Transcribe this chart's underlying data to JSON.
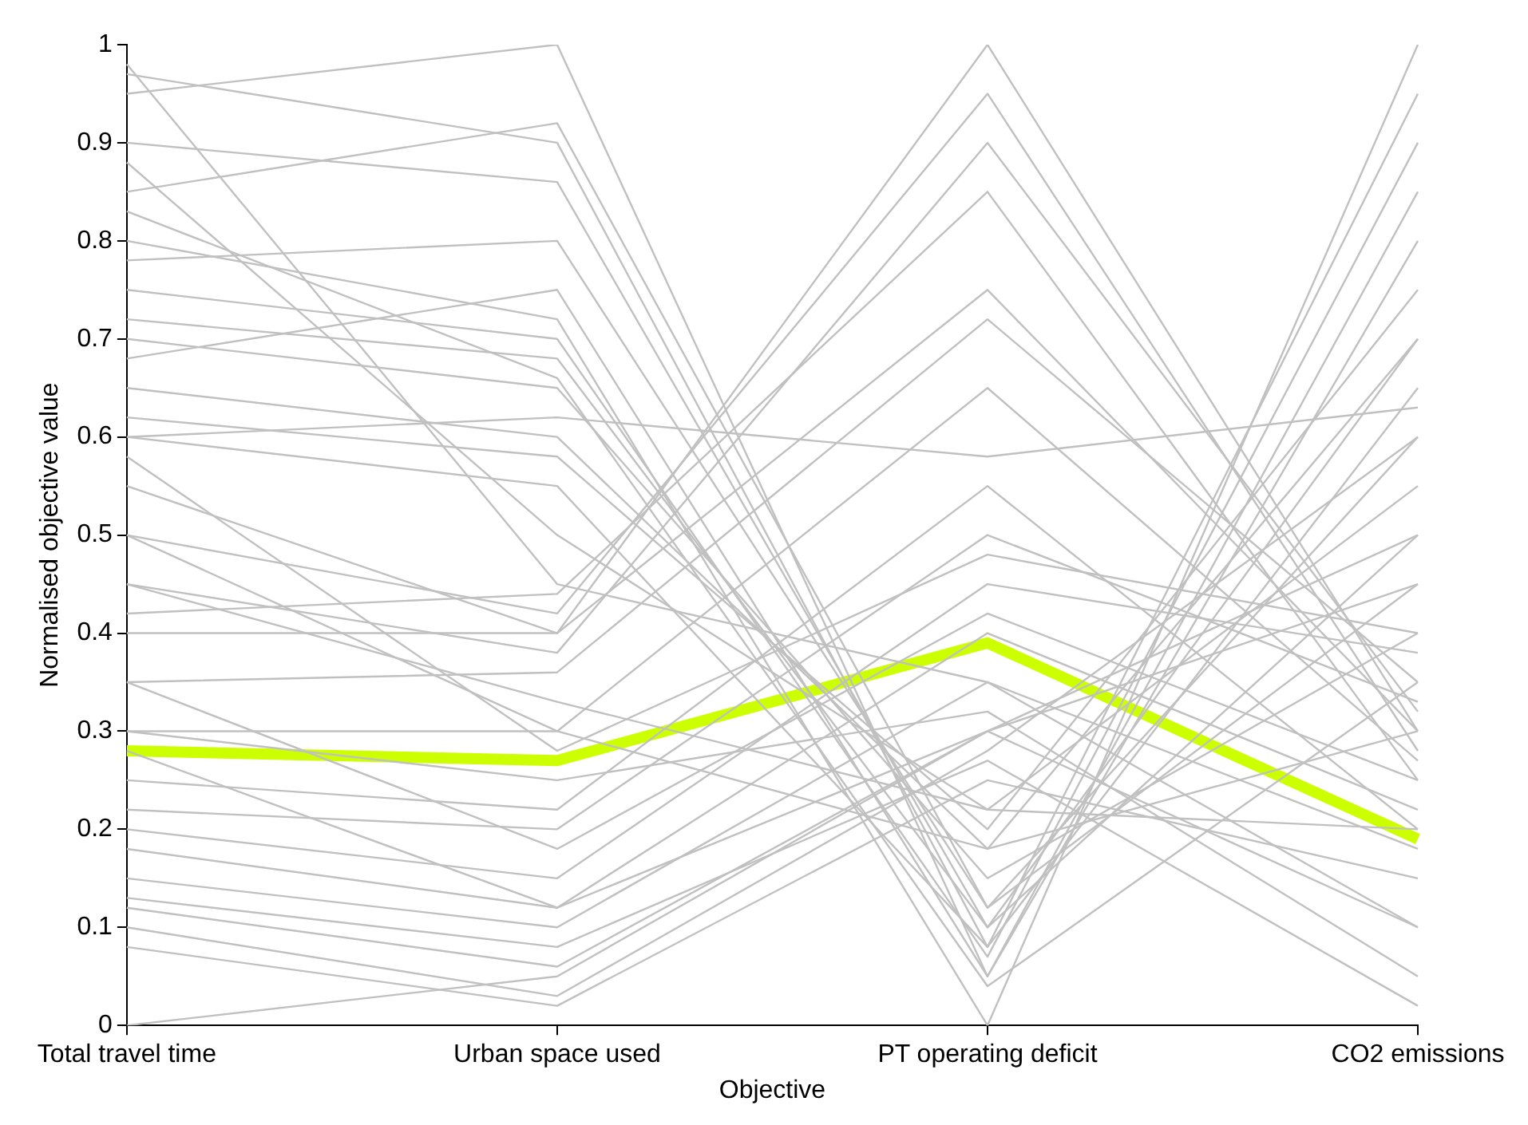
{
  "chart_data": {
    "type": "line",
    "xlabel": "Objective",
    "ylabel": "Normalised objective value",
    "categories": [
      "Total travel time",
      "Urban space used",
      "PT operating deficit",
      "CO2 emissions"
    ],
    "ylim": [
      0,
      1
    ],
    "yticks": [
      0,
      0.1,
      0.2,
      0.3,
      0.4,
      0.5,
      0.6,
      0.7,
      0.8,
      0.9,
      1
    ],
    "grid": false,
    "legend": false,
    "marker": "none",
    "line_style": "solid",
    "series": [
      {
        "color": "#c0c0c0",
        "values": [
          0.97,
          0.9,
          0.08,
          0.95
        ]
      },
      {
        "color": "#c0c0c0",
        "values": [
          0.95,
          1.0,
          0.05,
          0.85
        ]
      },
      {
        "color": "#c0c0c0",
        "values": [
          0.9,
          0.86,
          0.1,
          0.7
        ]
      },
      {
        "color": "#c0c0c0",
        "values": [
          0.85,
          0.92,
          0.12,
          0.6
        ]
      },
      {
        "color": "#c0c0c0",
        "values": [
          0.8,
          0.72,
          0.0,
          1.0
        ]
      },
      {
        "color": "#c0c0c0",
        "values": [
          0.75,
          0.7,
          0.07,
          0.9
        ]
      },
      {
        "color": "#c0c0c0",
        "values": [
          0.72,
          0.68,
          0.1,
          0.5
        ]
      },
      {
        "color": "#c0c0c0",
        "values": [
          0.7,
          0.65,
          0.15,
          0.4
        ]
      },
      {
        "color": "#c0c0c0",
        "values": [
          0.68,
          0.75,
          0.05,
          0.8
        ]
      },
      {
        "color": "#c0c0c0",
        "values": [
          0.65,
          0.6,
          0.18,
          0.3
        ]
      },
      {
        "color": "#c0c0c0",
        "values": [
          0.62,
          0.58,
          0.2,
          0.75
        ]
      },
      {
        "color": "#c0c0c0",
        "values": [
          0.6,
          0.55,
          0.08,
          0.65
        ]
      },
      {
        "color": "#c0c0c0",
        "values": [
          0.88,
          0.5,
          0.22,
          0.2
        ]
      },
      {
        "color": "#c0c0c0",
        "values": [
          0.98,
          0.45,
          0.35,
          0.1
        ]
      },
      {
        "color": "#c0c0c0",
        "values": [
          0.55,
          0.4,
          1.0,
          0.3
        ]
      },
      {
        "color": "#c0c0c0",
        "values": [
          0.5,
          0.42,
          0.95,
          0.28
        ]
      },
      {
        "color": "#c0c0c0",
        "values": [
          0.45,
          0.38,
          0.9,
          0.32
        ]
      },
      {
        "color": "#c0c0c0",
        "values": [
          0.42,
          0.44,
          0.85,
          0.25
        ]
      },
      {
        "color": "#c0c0c0",
        "values": [
          0.4,
          0.4,
          0.75,
          0.3
        ]
      },
      {
        "color": "#c0c0c0",
        "values": [
          0.35,
          0.36,
          0.72,
          0.35
        ]
      },
      {
        "color": "#c0c0c0",
        "values": [
          0.3,
          0.3,
          0.65,
          0.27
        ]
      },
      {
        "color": "#c0c0c0",
        "values": [
          0.25,
          0.22,
          0.55,
          0.2
        ]
      },
      {
        "color": "#c0c0c0",
        "values": [
          0.22,
          0.2,
          0.5,
          0.33
        ]
      },
      {
        "color": "#c0c0c0",
        "values": [
          0.2,
          0.15,
          0.45,
          0.38
        ]
      },
      {
        "color": "#c0c0c0",
        "values": [
          0.18,
          0.12,
          0.4,
          0.22
        ]
      },
      {
        "color": "#c0c0c0",
        "values": [
          0.15,
          0.1,
          0.35,
          0.18
        ]
      },
      {
        "color": "#c0c0c0",
        "values": [
          0.12,
          0.06,
          0.3,
          0.45
        ]
      },
      {
        "color": "#c0c0c0",
        "values": [
          0.1,
          0.03,
          0.28,
          0.6
        ]
      },
      {
        "color": "#c0c0c0",
        "values": [
          0.08,
          0.02,
          0.25,
          0.15
        ]
      },
      {
        "color": "#c0c0c0",
        "values": [
          0.0,
          0.05,
          0.3,
          0.1
        ]
      },
      {
        "color": "#c0c0c0",
        "values": [
          0.13,
          0.08,
          0.27,
          0.02
        ]
      },
      {
        "color": "#c0c0c0",
        "values": [
          0.3,
          0.25,
          0.32,
          0.05
        ]
      },
      {
        "color": "#c0c0c0",
        "values": [
          0.45,
          0.33,
          0.22,
          0.55
        ]
      },
      {
        "color": "#c0c0c0",
        "values": [
          0.5,
          0.3,
          0.18,
          0.7
        ]
      },
      {
        "color": "#c0c0c0",
        "values": [
          0.6,
          0.62,
          0.58,
          0.63
        ]
      },
      {
        "color": "#c0c0c0",
        "values": [
          0.78,
          0.8,
          0.12,
          0.45
        ]
      },
      {
        "color": "#c0c0c0",
        "values": [
          0.83,
          0.66,
          0.04,
          0.35
        ]
      },
      {
        "color": "#c0c0c0",
        "values": [
          0.58,
          0.28,
          0.48,
          0.4
        ]
      },
      {
        "color": "#c0c0c0",
        "values": [
          0.35,
          0.18,
          0.42,
          0.25
        ]
      },
      {
        "color": "#c0c0c0",
        "values": [
          0.28,
          0.12,
          0.3,
          0.5
        ]
      },
      {
        "color": "#ccff00",
        "values": [
          0.28,
          0.27,
          0.39,
          0.19
        ]
      }
    ]
  }
}
